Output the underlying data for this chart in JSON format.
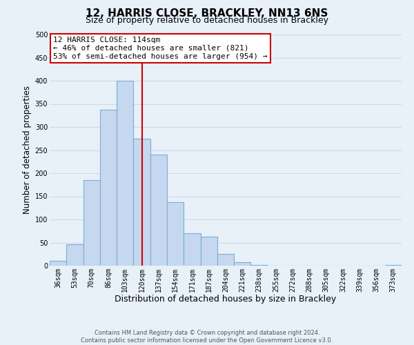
{
  "title": "12, HARRIS CLOSE, BRACKLEY, NN13 6NS",
  "subtitle": "Size of property relative to detached houses in Brackley",
  "xlabel": "Distribution of detached houses by size in Brackley",
  "ylabel": "Number of detached properties",
  "categories": [
    "36sqm",
    "53sqm",
    "70sqm",
    "86sqm",
    "103sqm",
    "120sqm",
    "137sqm",
    "154sqm",
    "171sqm",
    "187sqm",
    "204sqm",
    "221sqm",
    "238sqm",
    "255sqm",
    "272sqm",
    "288sqm",
    "305sqm",
    "322sqm",
    "339sqm",
    "356sqm",
    "373sqm"
  ],
  "values": [
    10,
    46,
    185,
    338,
    400,
    275,
    240,
    137,
    70,
    62,
    25,
    8,
    2,
    0,
    0,
    0,
    0,
    0,
    0,
    0,
    2
  ],
  "bar_color": "#c5d8f0",
  "bar_edge_color": "#7aadd4",
  "grid_color": "#c8d8ec",
  "background_color": "#e8f0f8",
  "vline_x_index": 5,
  "vline_color": "#cc0000",
  "annotation_title": "12 HARRIS CLOSE: 114sqm",
  "annotation_line1": "← 46% of detached houses are smaller (821)",
  "annotation_line2": "53% of semi-detached houses are larger (954) →",
  "annotation_box_color": "#ffffff",
  "annotation_box_edge": "#cc0000",
  "ylim": [
    0,
    500
  ],
  "yticks": [
    0,
    50,
    100,
    150,
    200,
    250,
    300,
    350,
    400,
    450,
    500
  ],
  "footer_line1": "Contains HM Land Registry data © Crown copyright and database right 2024.",
  "footer_line2": "Contains public sector information licensed under the Open Government Licence v3.0.",
  "title_fontsize": 11,
  "subtitle_fontsize": 9,
  "xlabel_fontsize": 9,
  "ylabel_fontsize": 8.5,
  "tick_fontsize": 7,
  "footer_fontsize": 6,
  "annotation_fontsize": 8,
  "annotation_title_fontsize": 8.5
}
